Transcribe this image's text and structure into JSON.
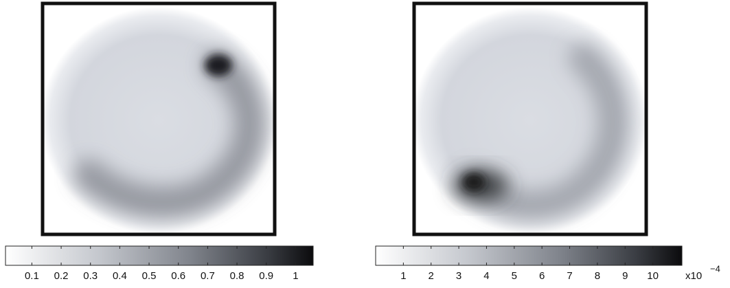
{
  "chart_data": [
    {
      "type": "heatmap",
      "colorbar": {
        "lim": [
          0.01,
          1.06
        ],
        "ticks": [
          0.1,
          0.2,
          0.3,
          0.4,
          0.5,
          0.6,
          0.7,
          0.8,
          0.9,
          1
        ]
      }
    },
    {
      "type": "heatmap",
      "colorbar": {
        "lim": [
          0,
          11.05
        ],
        "ticks": [
          1,
          2,
          3,
          4,
          5,
          6,
          7,
          8,
          9,
          10
        ],
        "scale_label": {
          "base": "x10",
          "exponent": "−4"
        }
      }
    }
  ]
}
